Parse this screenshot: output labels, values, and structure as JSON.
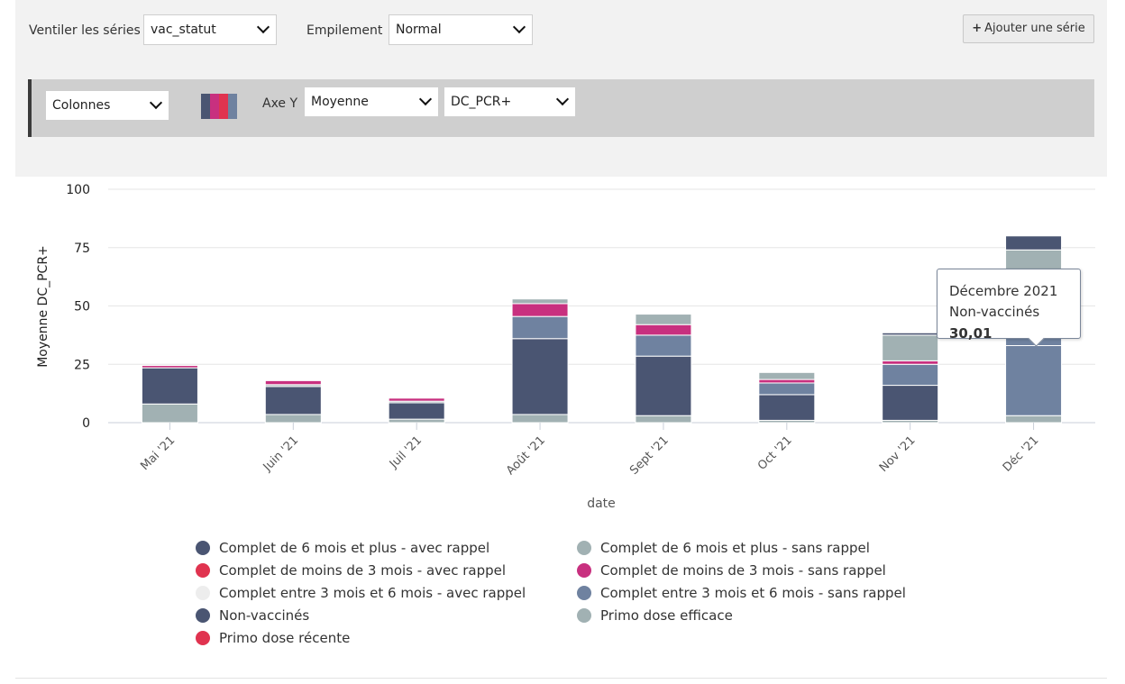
{
  "controls": {
    "breakdown_label": "Ventiler les séries",
    "breakdown_value": "vac_statut",
    "stacking_label": "Empilement",
    "stacking_value": "Normal",
    "add_series_label": "Ajouter une série",
    "series": {
      "chart_type": "Colonnes",
      "yaxis_label": "Axe Y",
      "aggregation": "Moyenne",
      "variable": "DC_PCR+",
      "palette_colors": [
        "#4a5572",
        "#c8307f",
        "#e0334f",
        "#6f82a0"
      ]
    }
  },
  "tooltip": {
    "title": "Décembre 2021",
    "series_name": "Non-vaccinés",
    "value": "30,01"
  },
  "chart_data": {
    "type": "bar",
    "stacked": true,
    "xlabel": "date",
    "ylabel": "Moyenne DC_PCR+",
    "ylim": [
      0,
      100
    ],
    "yticks": [
      0,
      25,
      50,
      75,
      100
    ],
    "grid": true,
    "legend_position": "bottom",
    "categories": [
      "Mai '21",
      "Juin '21",
      "Juil '21",
      "Août '21",
      "Sept '21",
      "Oct '21",
      "Nov '21",
      "Déc '21"
    ],
    "series": [
      {
        "name": "Complet de 6 mois et plus - avec rappel",
        "color": "#4a5572",
        "values": [
          0,
          0,
          0,
          0,
          0,
          0,
          0,
          0
        ]
      },
      {
        "name": "Complet de 6 mois et plus - sans rappel",
        "color": "#a1b1b3",
        "values": [
          0,
          0,
          0,
          0,
          0,
          0,
          0,
          0
        ]
      },
      {
        "name": "Complet de moins de 3 mois - avec rappel",
        "color": "#e0334f",
        "values": [
          0,
          0,
          0,
          0,
          0,
          0,
          0,
          0
        ]
      },
      {
        "name": "Complet de moins de 3 mois - sans rappel",
        "color": "#c8307f",
        "values": [
          0,
          0,
          0,
          0,
          0,
          0,
          0,
          0
        ]
      },
      {
        "name": "Complet entre 3 mois et 6 mois - avec rappel",
        "color": "#ededed",
        "values": [
          0,
          0,
          0,
          0,
          0,
          0,
          0,
          0
        ]
      },
      {
        "name": "Complet entre 3 mois et 6 mois - sans rappel",
        "color": "#6f82a0",
        "values": [
          0,
          0,
          0,
          0,
          0,
          0,
          0,
          0
        ]
      },
      {
        "name": "Non-vaccinés",
        "color": "#4a5572",
        "values": [
          0,
          0,
          0,
          0,
          0,
          0,
          0,
          30.01
        ]
      },
      {
        "name": "Primo dose efficace",
        "color": "#a1b1b3",
        "values": [
          0,
          0,
          0,
          0,
          0,
          0,
          0,
          0
        ]
      },
      {
        "name": "Primo dose récente",
        "color": "#e0334f",
        "values": [
          0,
          0,
          0,
          0,
          0,
          0,
          0,
          0
        ]
      }
    ],
    "stacks": [
      [
        {
          "color": "#a1b1b3",
          "value": 8
        },
        {
          "color": "#4a5572",
          "value": 15.5
        },
        {
          "color": "#c8307f",
          "value": 1
        }
      ],
      [
        {
          "color": "#a1b1b3",
          "value": 3.5
        },
        {
          "color": "#4a5572",
          "value": 12
        },
        {
          "color": "#a1b1b3",
          "value": 0.8
        },
        {
          "color": "#c8307f",
          "value": 1.7
        }
      ],
      [
        {
          "color": "#a1b1b3",
          "value": 1.5
        },
        {
          "color": "#4a5572",
          "value": 7
        },
        {
          "color": "#a1b1b3",
          "value": 0.7
        },
        {
          "color": "#c8307f",
          "value": 1.3
        }
      ],
      [
        {
          "color": "#a1b1b3",
          "value": 3.5
        },
        {
          "color": "#4a5572",
          "value": 32.5
        },
        {
          "color": "#6f82a0",
          "value": 9.5
        },
        {
          "color": "#c8307f",
          "value": 5.5
        },
        {
          "color": "#a1b1b3",
          "value": 2
        }
      ],
      [
        {
          "color": "#a1b1b3",
          "value": 3
        },
        {
          "color": "#4a5572",
          "value": 25.5
        },
        {
          "color": "#6f82a0",
          "value": 9
        },
        {
          "color": "#c8307f",
          "value": 4.5
        },
        {
          "color": "#a1b1b3",
          "value": 4.5
        }
      ],
      [
        {
          "color": "#a1b1b3",
          "value": 1
        },
        {
          "color": "#4a5572",
          "value": 11
        },
        {
          "color": "#6f82a0",
          "value": 5
        },
        {
          "color": "#c8307f",
          "value": 1.5
        },
        {
          "color": "#a1b1b3",
          "value": 3
        }
      ],
      [
        {
          "color": "#a1b1b3",
          "value": 1
        },
        {
          "color": "#4a5572",
          "value": 15
        },
        {
          "color": "#6f82a0",
          "value": 9
        },
        {
          "color": "#c8307f",
          "value": 1.5
        },
        {
          "color": "#a1b1b3",
          "value": 11
        },
        {
          "color": "#4a5572",
          "value": 1
        }
      ],
      [
        {
          "color": "#a1b1b3",
          "value": 3
        },
        {
          "color": "#6f82a0",
          "value": 30.01
        },
        {
          "color": "#6f82a0",
          "value": 14
        },
        {
          "color": "#c8307f",
          "value": 1
        },
        {
          "color": "#a1b1b3",
          "value": 26
        },
        {
          "color": "#4a5572",
          "value": 6
        }
      ]
    ]
  },
  "legend": {
    "left": [
      {
        "label": "Complet de 6 mois et plus - avec rappel",
        "color": "#4a5572"
      },
      {
        "label": "Complet de moins de 3 mois - avec rappel",
        "color": "#e0334f"
      },
      {
        "label": "Complet entre 3 mois et 6 mois - avec rappel",
        "color": "#ededed"
      },
      {
        "label": "Non-vaccinés",
        "color": "#4a5572"
      },
      {
        "label": "Primo dose récente",
        "color": "#e0334f"
      }
    ],
    "right": [
      {
        "label": "Complet de 6 mois et plus - sans rappel",
        "color": "#a1b1b3"
      },
      {
        "label": "Complet de moins de 3 mois - sans rappel",
        "color": "#c8307f"
      },
      {
        "label": "Complet entre 3 mois et 6 mois - sans rappel",
        "color": "#6f82a0"
      },
      {
        "label": "Primo dose efficace",
        "color": "#a1b1b3"
      }
    ]
  }
}
